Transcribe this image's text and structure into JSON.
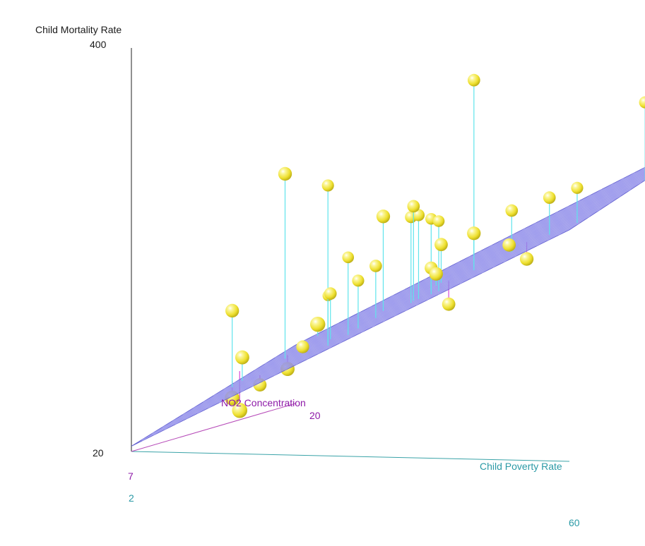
{
  "chart_data": {
    "type": "scatter",
    "subtype": "3d-scatter-with-regression-plane",
    "zlabel": "Child Mortality Rate",
    "ylabel": "NO2 Concentration",
    "xlabel": "Child Poverty Rate",
    "zlim": [
      20,
      400
    ],
    "ylim": [
      7,
      20
    ],
    "xlim": [
      2,
      60
    ],
    "tick_labels": {
      "z_min": "20",
      "z_max": "400",
      "y_min": "7",
      "y_max": "20",
      "x_min": "2",
      "x_max": "60"
    },
    "colors": {
      "points": "#f2ec3a",
      "plane": "#7b78e0",
      "residual_above": "#5fe4ec",
      "residual_below": "#d84ad8",
      "no2_axis": "#b64ab8",
      "poverty_axis": "#3aa3a8",
      "mortality_axis": "#222222"
    },
    "regression_plane": {
      "z_at_min_poverty_min_no2": 25,
      "z_at_min_poverty_max_no2": 75,
      "z_at_max_poverty_min_no2": 238,
      "z_at_max_poverty_max_no2": 294
    },
    "points": [
      {
        "x": 15,
        "y": 7.8,
        "z": 58,
        "fitted": 95
      },
      {
        "x": 7,
        "y": 12,
        "z": 136,
        "fitted": 64
      },
      {
        "x": 10,
        "y": 11,
        "z": 96,
        "fitted": 74
      },
      {
        "x": 8,
        "y": 19,
        "z": 126,
        "fitted": 79
      },
      {
        "x": 13,
        "y": 16,
        "z": 241,
        "fitted": 93
      },
      {
        "x": 14,
        "y": 12,
        "z": 266,
        "fitted": 92
      },
      {
        "x": 9,
        "y": 13,
        "z": 63,
        "fitted": 72
      },
      {
        "x": 12,
        "y": 9,
        "z": 65,
        "fitted": 81
      },
      {
        "x": 14,
        "y": 17,
        "z": 170,
        "fitted": 97
      },
      {
        "x": 17,
        "y": 16,
        "z": 152,
        "fitted": 107
      },
      {
        "x": 16,
        "y": 11,
        "z": 86,
        "fitted": 99
      },
      {
        "x": 15,
        "y": 15,
        "z": 143,
        "fitted": 100
      },
      {
        "x": 13,
        "y": 14,
        "z": 96,
        "fitted": 94
      },
      {
        "x": 25,
        "y": 8,
        "z": 140,
        "fitted": 129
      },
      {
        "x": 21,
        "y": 15,
        "z": 170,
        "fitted": 121
      },
      {
        "x": 27,
        "y": 12,
        "z": 228,
        "fitted": 139
      },
      {
        "x": 24,
        "y": 16,
        "z": 213,
        "fitted": 132
      },
      {
        "x": 25,
        "y": 17,
        "z": 208,
        "fitted": 137
      },
      {
        "x": 26,
        "y": 17,
        "z": 206,
        "fitted": 140
      },
      {
        "x": 25,
        "y": 16,
        "z": 215,
        "fitted": 136
      },
      {
        "x": 26,
        "y": 15,
        "z": 227,
        "fitted": 138
      },
      {
        "x": 30,
        "y": 14,
        "z": 173,
        "fitted": 152
      },
      {
        "x": 33,
        "y": 13,
        "z": 199,
        "fitted": 163
      },
      {
        "x": 34,
        "y": 12,
        "z": 175,
        "fitted": 164
      },
      {
        "x": 34,
        "y": 15,
        "z": 347,
        "fitted": 168
      },
      {
        "x": 34,
        "y": 13,
        "z": 143,
        "fitted": 165
      },
      {
        "x": 39,
        "y": 12,
        "z": 214,
        "fitted": 182
      },
      {
        "x": 39,
        "y": 15,
        "z": 225,
        "fitted": 186
      },
      {
        "x": 42,
        "y": 13,
        "z": 200,
        "fitted": 194
      },
      {
        "x": 44,
        "y": 15,
        "z": 238,
        "fitted": 203
      },
      {
        "x": 46,
        "y": 16,
        "z": 244,
        "fitted": 211
      },
      {
        "x": 46,
        "y": 12,
        "z": 191,
        "fitted": 207
      },
      {
        "x": 55,
        "y": 16,
        "z": 326,
        "fitted": 252
      }
    ]
  }
}
